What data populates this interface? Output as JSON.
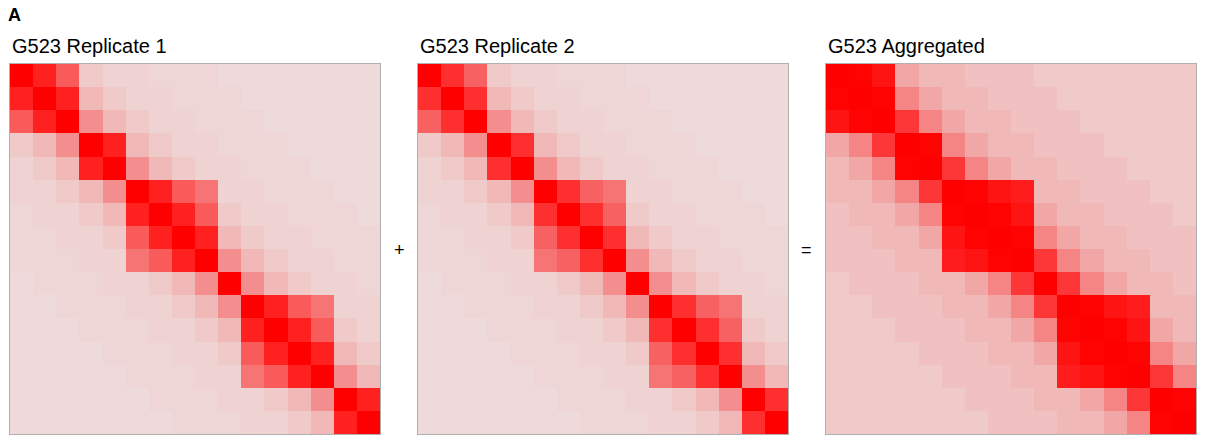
{
  "figure": {
    "panel_label": "A",
    "operators": [
      "+",
      "="
    ]
  },
  "chart_data": [
    {
      "type": "heatmap",
      "title": "G523 Replicate 1",
      "zlim": [
        0,
        100
      ],
      "xlim": [
        -0.5,
        15.5
      ],
      "ylim": [
        15.5,
        -0.5
      ],
      "tick_labels": false,
      "z": [
        [
          100,
          50,
          35,
          8,
          6,
          6,
          5,
          5,
          5,
          4,
          4,
          4,
          4,
          4,
          4,
          4
        ],
        [
          50,
          100,
          50,
          12,
          8,
          6,
          6,
          5,
          5,
          5,
          4,
          4,
          4,
          4,
          4,
          4
        ],
        [
          35,
          50,
          100,
          22,
          12,
          8,
          6,
          6,
          5,
          5,
          5,
          4,
          4,
          4,
          4,
          4
        ],
        [
          8,
          12,
          22,
          100,
          50,
          12,
          8,
          6,
          6,
          5,
          5,
          5,
          4,
          4,
          4,
          4
        ],
        [
          6,
          8,
          12,
          50,
          100,
          22,
          12,
          8,
          6,
          6,
          5,
          5,
          5,
          4,
          4,
          4
        ],
        [
          6,
          6,
          8,
          12,
          22,
          100,
          50,
          35,
          28,
          6,
          6,
          5,
          5,
          5,
          4,
          4
        ],
        [
          5,
          6,
          6,
          8,
          12,
          50,
          100,
          50,
          35,
          8,
          6,
          6,
          5,
          5,
          5,
          4
        ],
        [
          5,
          5,
          6,
          6,
          8,
          35,
          50,
          100,
          50,
          12,
          8,
          6,
          6,
          5,
          5,
          5
        ],
        [
          5,
          5,
          5,
          6,
          6,
          28,
          35,
          50,
          100,
          22,
          12,
          8,
          6,
          6,
          5,
          5
        ],
        [
          4,
          5,
          5,
          5,
          6,
          6,
          8,
          12,
          22,
          100,
          22,
          12,
          8,
          6,
          6,
          5
        ],
        [
          4,
          4,
          5,
          5,
          5,
          6,
          6,
          8,
          12,
          22,
          100,
          50,
          35,
          28,
          6,
          6
        ],
        [
          4,
          4,
          4,
          5,
          5,
          5,
          6,
          6,
          8,
          12,
          50,
          100,
          50,
          35,
          8,
          6
        ],
        [
          4,
          4,
          4,
          4,
          5,
          5,
          5,
          6,
          6,
          8,
          35,
          50,
          100,
          50,
          12,
          8
        ],
        [
          4,
          4,
          4,
          4,
          4,
          5,
          5,
          5,
          6,
          6,
          28,
          35,
          50,
          100,
          22,
          12
        ],
        [
          4,
          4,
          4,
          4,
          4,
          4,
          5,
          5,
          5,
          6,
          6,
          8,
          12,
          22,
          100,
          50
        ],
        [
          4,
          4,
          4,
          4,
          4,
          4,
          4,
          5,
          5,
          5,
          6,
          6,
          8,
          12,
          50,
          100
        ]
      ]
    },
    {
      "type": "heatmap",
      "title": "G523 Replicate 2",
      "zlim": [
        0,
        100
      ],
      "xlim": [
        -0.5,
        15.5
      ],
      "ylim": [
        15.5,
        -0.5
      ],
      "tick_labels": false,
      "z": [
        [
          100,
          46,
          33,
          8,
          6,
          6,
          5,
          5,
          5,
          4,
          4,
          4,
          4,
          4,
          4,
          4
        ],
        [
          46,
          100,
          46,
          12,
          8,
          6,
          6,
          5,
          5,
          5,
          4,
          4,
          4,
          4,
          4,
          4
        ],
        [
          33,
          46,
          100,
          22,
          12,
          8,
          6,
          6,
          5,
          5,
          5,
          4,
          4,
          4,
          4,
          4
        ],
        [
          8,
          12,
          22,
          100,
          46,
          12,
          8,
          6,
          6,
          5,
          5,
          5,
          4,
          4,
          4,
          4
        ],
        [
          6,
          8,
          12,
          46,
          100,
          22,
          12,
          8,
          6,
          6,
          5,
          5,
          5,
          4,
          4,
          4
        ],
        [
          6,
          6,
          8,
          12,
          22,
          100,
          46,
          33,
          28,
          6,
          6,
          5,
          5,
          5,
          4,
          4
        ],
        [
          5,
          6,
          6,
          8,
          12,
          46,
          100,
          46,
          33,
          8,
          6,
          6,
          5,
          5,
          5,
          4
        ],
        [
          5,
          5,
          6,
          6,
          8,
          33,
          46,
          100,
          46,
          12,
          8,
          6,
          6,
          5,
          5,
          5
        ],
        [
          5,
          5,
          5,
          6,
          6,
          28,
          33,
          46,
          100,
          22,
          12,
          8,
          6,
          6,
          5,
          5
        ],
        [
          4,
          5,
          5,
          5,
          6,
          6,
          8,
          12,
          22,
          100,
          22,
          12,
          8,
          6,
          6,
          5
        ],
        [
          4,
          4,
          5,
          5,
          5,
          6,
          6,
          8,
          12,
          22,
          100,
          46,
          33,
          28,
          6,
          6
        ],
        [
          4,
          4,
          4,
          5,
          5,
          5,
          6,
          6,
          8,
          12,
          46,
          100,
          46,
          33,
          8,
          6
        ],
        [
          4,
          4,
          4,
          4,
          5,
          5,
          5,
          6,
          6,
          8,
          33,
          46,
          100,
          46,
          12,
          8
        ],
        [
          4,
          4,
          4,
          4,
          4,
          5,
          5,
          5,
          6,
          6,
          28,
          33,
          46,
          100,
          22,
          12
        ],
        [
          4,
          4,
          4,
          4,
          4,
          4,
          5,
          5,
          5,
          6,
          6,
          8,
          12,
          22,
          100,
          46
        ],
        [
          4,
          4,
          4,
          4,
          4,
          4,
          4,
          5,
          5,
          5,
          6,
          6,
          8,
          12,
          46,
          100
        ]
      ]
    },
    {
      "type": "heatmap",
      "title": "G523 Aggregated",
      "zlim": [
        0,
        100
      ],
      "xlim": [
        -0.5,
        15.5
      ],
      "ylim": [
        15.5,
        -0.5
      ],
      "tick_labels": false,
      "z": [
        [
          200,
          96,
          68,
          16,
          12,
          12,
          10,
          10,
          10,
          8,
          8,
          8,
          8,
          8,
          8,
          8
        ],
        [
          96,
          200,
          96,
          24,
          16,
          12,
          12,
          10,
          10,
          10,
          8,
          8,
          8,
          8,
          8,
          8
        ],
        [
          68,
          96,
          200,
          44,
          24,
          16,
          12,
          12,
          10,
          10,
          10,
          8,
          8,
          8,
          8,
          8
        ],
        [
          16,
          24,
          44,
          200,
          96,
          24,
          16,
          12,
          12,
          10,
          10,
          10,
          8,
          8,
          8,
          8
        ],
        [
          12,
          16,
          24,
          96,
          200,
          44,
          24,
          16,
          12,
          12,
          10,
          10,
          10,
          8,
          8,
          8
        ],
        [
          12,
          12,
          16,
          24,
          44,
          200,
          96,
          68,
          56,
          12,
          12,
          10,
          10,
          10,
          8,
          8
        ],
        [
          10,
          12,
          12,
          16,
          24,
          96,
          200,
          96,
          68,
          16,
          12,
          12,
          10,
          10,
          10,
          8
        ],
        [
          10,
          10,
          12,
          12,
          16,
          68,
          96,
          200,
          96,
          24,
          16,
          12,
          12,
          10,
          10,
          10
        ],
        [
          10,
          10,
          10,
          12,
          12,
          56,
          68,
          96,
          200,
          44,
          24,
          16,
          12,
          12,
          10,
          10
        ],
        [
          8,
          10,
          10,
          10,
          12,
          12,
          16,
          24,
          44,
          200,
          44,
          24,
          16,
          12,
          12,
          10
        ],
        [
          8,
          8,
          10,
          10,
          10,
          12,
          12,
          16,
          24,
          44,
          200,
          96,
          68,
          56,
          12,
          12
        ],
        [
          8,
          8,
          8,
          10,
          10,
          10,
          12,
          12,
          16,
          24,
          96,
          200,
          96,
          68,
          16,
          12
        ],
        [
          8,
          8,
          8,
          8,
          10,
          10,
          10,
          12,
          12,
          16,
          68,
          96,
          200,
          96,
          24,
          16
        ],
        [
          8,
          8,
          8,
          8,
          8,
          10,
          10,
          10,
          12,
          12,
          56,
          68,
          96,
          200,
          44,
          24
        ],
        [
          8,
          8,
          8,
          8,
          8,
          8,
          10,
          10,
          10,
          12,
          12,
          16,
          24,
          44,
          200,
          96
        ],
        [
          8,
          8,
          8,
          8,
          8,
          8,
          8,
          10,
          10,
          10,
          12,
          12,
          16,
          24,
          96,
          200
        ]
      ]
    }
  ]
}
